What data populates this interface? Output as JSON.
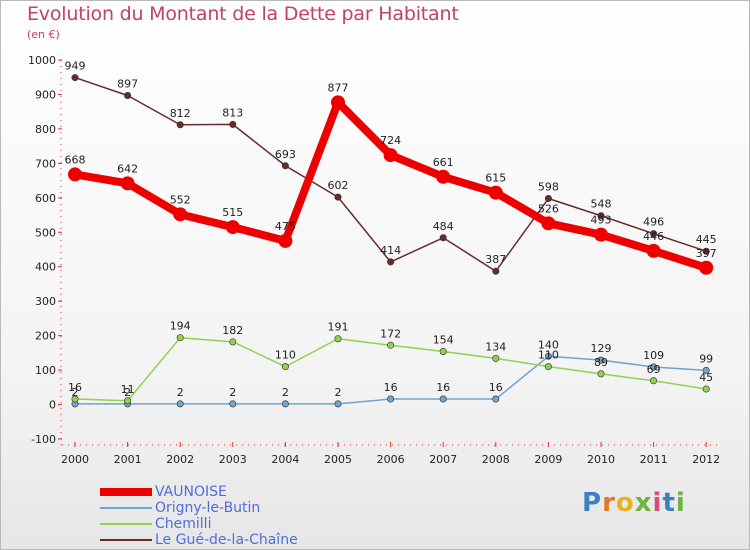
{
  "chart_data": {
    "type": "line",
    "title": "Evolution du Montant de la Dette par Habitant",
    "subtitle": "(en €)",
    "xlabel": "",
    "ylabel": "",
    "ylim": [
      -100,
      1000
    ],
    "yticks": [
      -100,
      0,
      100,
      200,
      300,
      400,
      500,
      600,
      700,
      800,
      900,
      1000
    ],
    "categories": [
      "2000",
      "2001",
      "2002",
      "2003",
      "2004",
      "2005",
      "2006",
      "2007",
      "2008",
      "2009",
      "2010",
      "2011",
      "2012"
    ],
    "grid": false,
    "legend": "bottom-left",
    "series": [
      {
        "name": "VAUNOISE",
        "color": "#ee0000",
        "values": [
          668,
          642,
          552,
          515,
          475,
          877,
          724,
          661,
          615,
          526,
          493,
          446,
          397
        ]
      },
      {
        "name": "Origny-le-Butin",
        "color": "#6fa3d0",
        "values": [
          2,
          2,
          2,
          2,
          2,
          2,
          16,
          16,
          16,
          140,
          129,
          109,
          99
        ]
      },
      {
        "name": "Chemilli",
        "color": "#92d050",
        "values": [
          16,
          11,
          194,
          182,
          110,
          191,
          172,
          154,
          134,
          110,
          89,
          69,
          45
        ]
      },
      {
        "name": "Le Gué-de-la-Chaîne",
        "color": "#6b2a2a",
        "values": [
          949,
          897,
          812,
          813,
          693,
          602,
          414,
          484,
          387,
          598,
          548,
          496,
          445
        ]
      }
    ]
  },
  "logo": {
    "letters": [
      "P",
      "r",
      "o",
      "x",
      "i",
      "t",
      "i"
    ]
  }
}
